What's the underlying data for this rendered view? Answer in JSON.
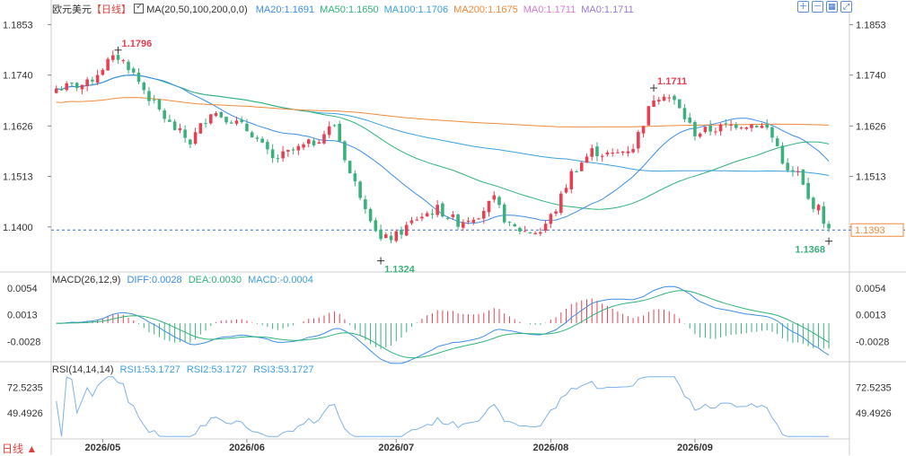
{
  "header": {
    "symbol": "欧元美元",
    "period_bracket": "【日线】",
    "ma_label": "MA(20,50,100,200,0,0)",
    "ma_values": [
      {
        "text": "MA20:1.1691",
        "color": "#3c8ee8"
      },
      {
        "text": "MA50:1.1650",
        "color": "#2fb37a"
      },
      {
        "text": "MA100:1.1706",
        "color": "#3aa0e0"
      },
      {
        "text": "MA200:1.1675",
        "color": "#f08a3c"
      },
      {
        "text": "MA0:1.1711",
        "color": "#d77ad6"
      },
      {
        "text": "MA0:1.1711",
        "color": "#9a7ad6"
      }
    ]
  },
  "macd_legend": {
    "label": "MACD(26,12,9)",
    "diff": "DIFF:0.0028",
    "dea": "DEA:0.0030",
    "macd": "MACD:-0.0004"
  },
  "rsi_legend": {
    "label": "RSI(14,14,14)",
    "rsi1": "RSI1:53.1727",
    "rsi2": "RSI2:53.1727",
    "rsi3": "RSI3:53.1727"
  },
  "footer": {
    "period_label": "日线 ▲"
  },
  "toolbar": [
    "zoom-in-icon",
    "zoom-out-icon",
    "grid-icon",
    "fullscreen-icon"
  ],
  "colors": {
    "up": "#e84052",
    "down": "#3ab07c",
    "ma20": "#3c8ee8",
    "ma50": "#2fb37a",
    "ma100": "#3aa0e0",
    "ma200": "#f08a3c",
    "diff": "#3c8ee8",
    "dea": "#2fb37a",
    "rsi": "#7fb2e8",
    "current": "#f08a3c",
    "axis": "#333333",
    "grid": "#e6e6e6"
  },
  "chart_data": {
    "type": "candlestick",
    "price_ticks": [
      "1.1853",
      "1.1740",
      "1.1626",
      "1.1513",
      "1.1400"
    ],
    "price_range": [
      1.1301,
      1.188
    ],
    "current_price": "1.1393",
    "annotations": [
      {
        "text": "1.1796",
        "value": 1.1796,
        "index": 12,
        "kind": "high"
      },
      {
        "text": "1.1324",
        "value": 1.1324,
        "index": 63,
        "kind": "low"
      },
      {
        "text": "1.1711",
        "value": 1.1711,
        "index": 116,
        "kind": "high"
      },
      {
        "text": "1.1368",
        "value": 1.1368,
        "index": 150,
        "kind": "low"
      }
    ],
    "x_ticks": [
      {
        "label": "2026/05",
        "index": 9
      },
      {
        "label": "2026/06",
        "index": 37
      },
      {
        "label": "2026/07",
        "index": 66
      },
      {
        "label": "2026/08",
        "index": 96
      },
      {
        "label": "2026/09",
        "index": 124
      }
    ],
    "candle_count": 151,
    "close_keypoints": [
      [
        0,
        1.171
      ],
      [
        6,
        1.172
      ],
      [
        10,
        1.177
      ],
      [
        12,
        1.178
      ],
      [
        14,
        1.176
      ],
      [
        18,
        1.169
      ],
      [
        22,
        1.163
      ],
      [
        26,
        1.159
      ],
      [
        30,
        1.166
      ],
      [
        34,
        1.164
      ],
      [
        38,
        1.161
      ],
      [
        42,
        1.155
      ],
      [
        46,
        1.157
      ],
      [
        50,
        1.159
      ],
      [
        54,
        1.163
      ],
      [
        57,
        1.152
      ],
      [
        60,
        1.145
      ],
      [
        63,
        1.137
      ],
      [
        66,
        1.138
      ],
      [
        70,
        1.142
      ],
      [
        74,
        1.144
      ],
      [
        78,
        1.141
      ],
      [
        82,
        1.143
      ],
      [
        85,
        1.146
      ],
      [
        88,
        1.14
      ],
      [
        91,
        1.139
      ],
      [
        94,
        1.139
      ],
      [
        97,
        1.144
      ],
      [
        100,
        1.152
      ],
      [
        104,
        1.157
      ],
      [
        108,
        1.156
      ],
      [
        112,
        1.158
      ],
      [
        116,
        1.169
      ],
      [
        118,
        1.17
      ],
      [
        120,
        1.168
      ],
      [
        124,
        1.161
      ],
      [
        128,
        1.162
      ],
      [
        132,
        1.163
      ],
      [
        136,
        1.163
      ],
      [
        138,
        1.162
      ],
      [
        140,
        1.158
      ],
      [
        142,
        1.152
      ],
      [
        144,
        1.152
      ],
      [
        146,
        1.146
      ],
      [
        148,
        1.144
      ],
      [
        150,
        1.139
      ]
    ],
    "macd_ticks": [
      "0.0054",
      "0.0013",
      "-0.0028"
    ],
    "macd_range": [
      -0.0058,
      0.0061
    ],
    "rsi_ticks": [
      "72.5235",
      "49.4926"
    ],
    "rsi_range": [
      25,
      85
    ]
  }
}
